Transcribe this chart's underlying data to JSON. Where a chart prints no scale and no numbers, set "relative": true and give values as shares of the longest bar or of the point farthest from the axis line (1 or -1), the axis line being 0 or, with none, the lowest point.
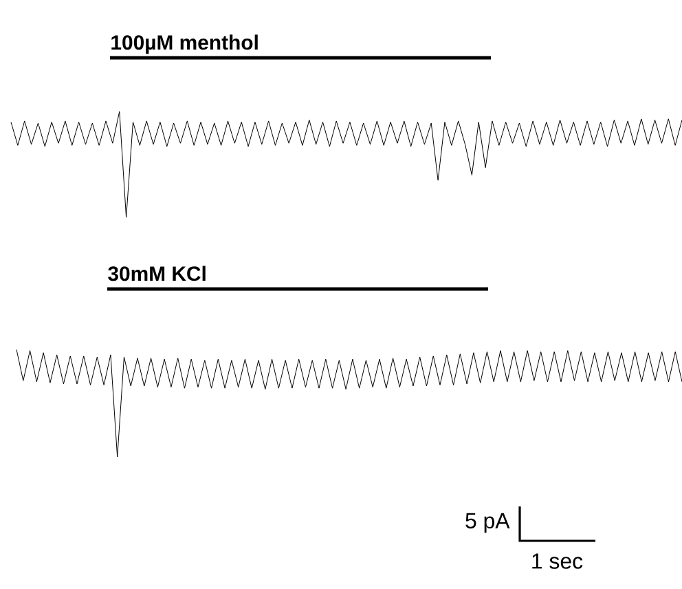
{
  "chart_data": [
    {
      "type": "line",
      "relative": true,
      "title": "100µM menthol",
      "categories": [
        null,
        null,
        null,
        null,
        null,
        null,
        null,
        null,
        null,
        null,
        null,
        null,
        null,
        null,
        null,
        null,
        null,
        null,
        null,
        null,
        null,
        null,
        null,
        null,
        null,
        null,
        null,
        null,
        null,
        null,
        null,
        null,
        null,
        null,
        null,
        null,
        null,
        null,
        null,
        null,
        null,
        null,
        null,
        null,
        null,
        null,
        null,
        null,
        null,
        null,
        null,
        null,
        null,
        null,
        null,
        null,
        null,
        null,
        null,
        null,
        null,
        null,
        null,
        null,
        null,
        null,
        null,
        null,
        null,
        null,
        null,
        null,
        null,
        null,
        null,
        null,
        null,
        null,
        null,
        null,
        null,
        null,
        null,
        null,
        null,
        null,
        null,
        null,
        null,
        null,
        null,
        null,
        null,
        null,
        null,
        null,
        null,
        null,
        null,
        null
      ],
      "series": [
        {
          "color": "#000000",
          "values": [
            0.9,
            0.68,
            0.91,
            0.69,
            0.89,
            0.67,
            0.9,
            0.7,
            0.91,
            0.68,
            0.9,
            0.69,
            0.89,
            0.68,
            0.91,
            0.7,
            1,
            0,
            0.9,
            0.68,
            0.91,
            0.69,
            0.9,
            0.67,
            0.89,
            0.7,
            0.91,
            0.68,
            0.9,
            0.69,
            0.89,
            0.68,
            0.91,
            0.7,
            0.9,
            0.67,
            0.9,
            0.69,
            0.91,
            0.68,
            0.89,
            0.7,
            0.9,
            0.68,
            0.92,
            0.69,
            0.9,
            0.67,
            0.91,
            0.7,
            0.9,
            0.68,
            0.89,
            0.69,
            0.91,
            0.68,
            0.9,
            0.7,
            0.91,
            0.67,
            0.9,
            0.69,
            0.89,
            0.35,
            0.9,
            0.68,
            0.91,
            0.69,
            0.4,
            0.9,
            0.47,
            0.91,
            0.68,
            0.9,
            0.7,
            0.89,
            0.67,
            0.91,
            0.69,
            0.9,
            0.68,
            0.92,
            0.7,
            0.9,
            0.68,
            0.91,
            0.69,
            0.9,
            0.67,
            0.92,
            0.7,
            0.91,
            0.68,
            0.93,
            0.69,
            0.92,
            0.7,
            0.93,
            0.68,
            0.92
          ]
        }
      ]
    },
    {
      "type": "line",
      "relative": true,
      "title": "30mM KCl",
      "categories": [
        null,
        null,
        null,
        null,
        null,
        null,
        null,
        null,
        null,
        null,
        null,
        null,
        null,
        null,
        null,
        null,
        null,
        null,
        null,
        null,
        null,
        null,
        null,
        null,
        null,
        null,
        null,
        null,
        null,
        null,
        null,
        null,
        null,
        null,
        null,
        null,
        null,
        null,
        null,
        null,
        null,
        null,
        null,
        null,
        null,
        null,
        null,
        null,
        null,
        null,
        null,
        null,
        null,
        null,
        null,
        null,
        null,
        null,
        null,
        null,
        null,
        null,
        null,
        null,
        null,
        null,
        null,
        null,
        null,
        null,
        null,
        null,
        null,
        null,
        null,
        null,
        null,
        null,
        null,
        null,
        null,
        null,
        null,
        null,
        null,
        null,
        null,
        null,
        null,
        null,
        null,
        null,
        null,
        null,
        null,
        null,
        null,
        null,
        null,
        null
      ],
      "series": [
        {
          "color": "#000000",
          "values": [
            1,
            0.71,
            0.99,
            0.7,
            0.97,
            0.69,
            0.95,
            0.68,
            0.94,
            0.68,
            0.94,
            0.67,
            0.93,
            0.67,
            0.95,
            0,
            0.93,
            0.66,
            0.92,
            0.66,
            0.92,
            0.65,
            0.91,
            0.65,
            0.92,
            0.64,
            0.91,
            0.65,
            0.9,
            0.64,
            0.91,
            0.64,
            0.9,
            0.65,
            0.91,
            0.64,
            0.9,
            0.63,
            0.91,
            0.64,
            0.9,
            0.64,
            0.91,
            0.65,
            0.9,
            0.64,
            0.91,
            0.64,
            0.9,
            0.63,
            0.91,
            0.64,
            0.9,
            0.65,
            0.91,
            0.64,
            0.92,
            0.65,
            0.91,
            0.66,
            0.93,
            0.66,
            0.94,
            0.67,
            0.95,
            0.67,
            0.96,
            0.68,
            0.97,
            0.69,
            0.98,
            0.7,
            0.99,
            0.7,
            0.98,
            0.7,
            0.99,
            0.71,
            0.98,
            0.7,
            0.98,
            0.7,
            0.99,
            0.71,
            0.98,
            0.7,
            0.97,
            0.7,
            0.98,
            0.71,
            0.97,
            0.7,
            0.98,
            0.7,
            0.97,
            0.71,
            0.98,
            0.7,
            0.98,
            0.7
          ]
        }
      ],
      "annotations": [
        "5 pA",
        "1 sec"
      ]
    }
  ]
}
